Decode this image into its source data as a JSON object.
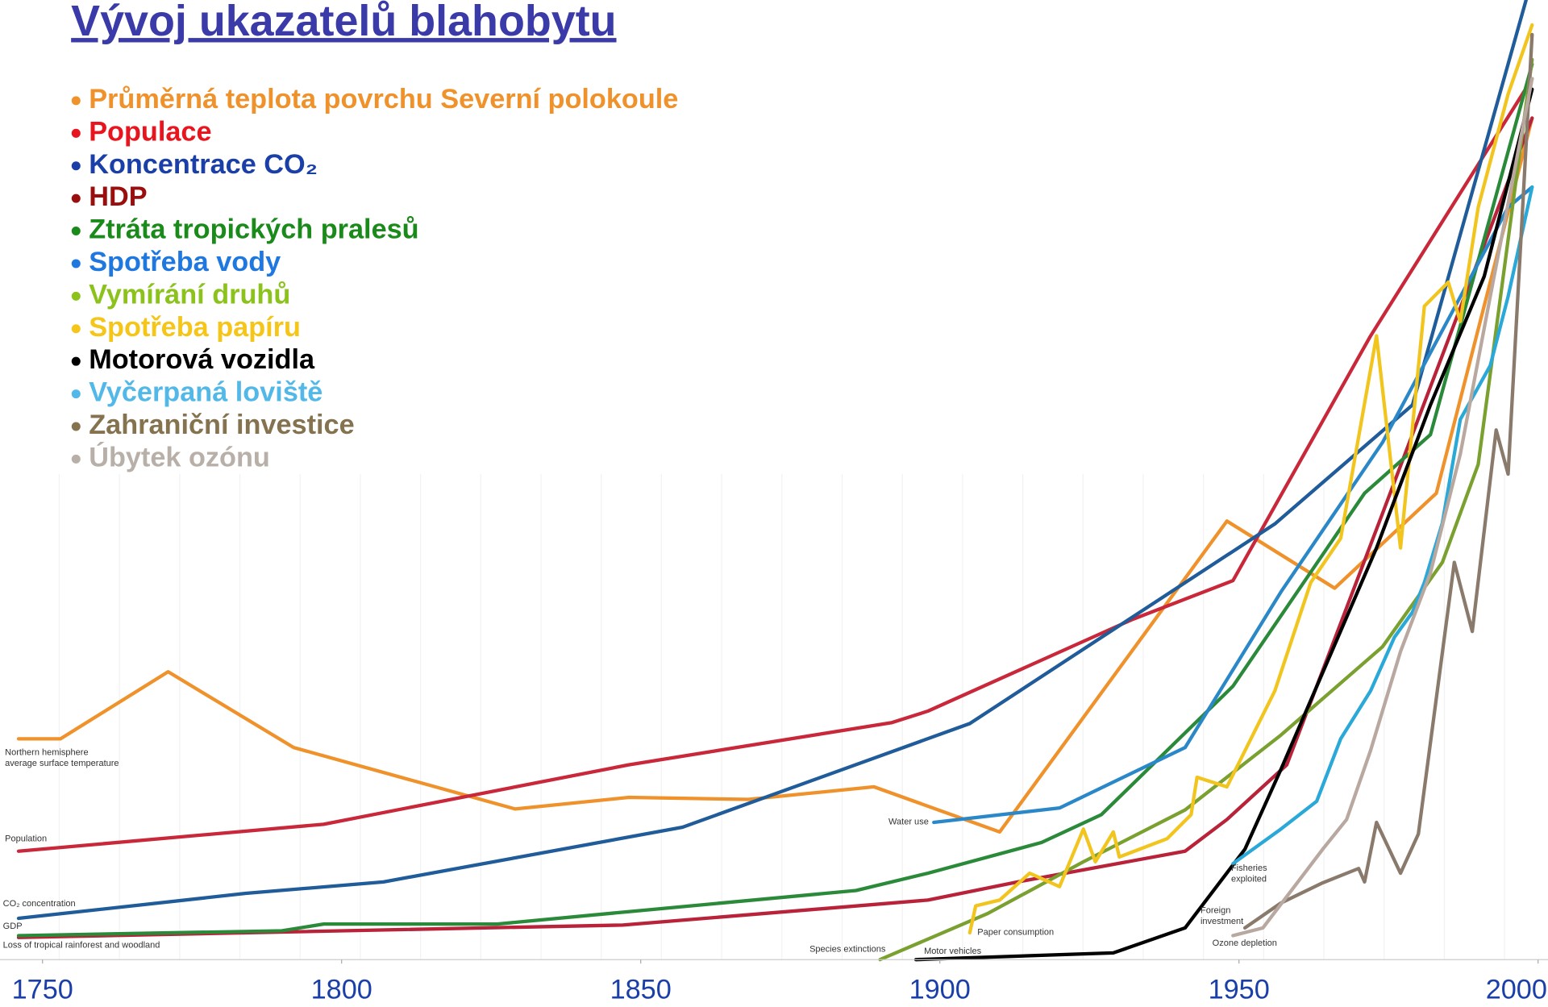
{
  "chart_data": {
    "type": "line",
    "title": "Vývoj ukazatelů blahobytu",
    "xlim": [
      1746,
      2001
    ],
    "xticks": [
      1750,
      1800,
      1850,
      1900,
      1950,
      2000
    ],
    "ylim": [
      0,
      100
    ],
    "series": [
      {
        "name": "Průměrná teplota povrchu Severní polokoule",
        "legend_color": "#f0922b",
        "color": "#f0922b",
        "label": [
          "Northern hemisphere",
          "average surface temperature"
        ],
        "x": [
          1746,
          1753,
          1771,
          1792,
          1829,
          1848,
          1868,
          1889,
          1910,
          1948,
          1966,
          1983,
          1999
        ],
        "values": [
          23.0,
          23.0,
          30.0,
          22.1,
          15.7,
          16.9,
          16.7,
          18.0,
          13.3,
          45.7,
          38.7,
          48.6,
          87.7
        ]
      },
      {
        "name": "Populace",
        "legend_color": "#e8141e",
        "color": "#c8283a",
        "label": [
          "Population"
        ],
        "x": [
          1746,
          1797,
          1848,
          1892,
          1898,
          1932,
          1949,
          1972,
          1999
        ],
        "values": [
          11.3,
          14.1,
          20.3,
          24.7,
          25.9,
          35.4,
          39.5,
          65.0,
          91.8
        ]
      },
      {
        "name": "Koncentrace CO₂",
        "legend_color": "#1a3fa8",
        "color": "#1f5c99",
        "label": [
          "CO₂ concentration"
        ],
        "x": [
          1746,
          1784,
          1807,
          1857,
          1905,
          1956,
          1979,
          1998
        ],
        "values": [
          4.3,
          6.9,
          8.1,
          13.8,
          24.6,
          45.4,
          57.8,
          100
        ]
      },
      {
        "name": "HDP",
        "legend_color": "#9a0e0e",
        "color": "#b8233a",
        "label": [
          "GDP"
        ],
        "x": [
          1746,
          1847,
          1898,
          1913,
          1941,
          1948,
          1958,
          1974,
          1999
        ],
        "values": [
          2.3,
          3.6,
          6.2,
          8.1,
          11.3,
          14.6,
          20.3,
          46.5,
          87.7
        ]
      },
      {
        "name": "Ztráta tropických pralesů",
        "legend_color": "#1a8a1a",
        "color": "#2a8a3a",
        "label": [
          "Loss of tropical rainforest and woodland"
        ],
        "x": [
          1746,
          1790,
          1797,
          1826,
          1848,
          1886,
          1898,
          1917,
          1927,
          1949,
          1971,
          1982,
          1999
        ],
        "values": [
          2.5,
          3.0,
          3.7,
          3.7,
          5.0,
          7.2,
          9.0,
          12.2,
          15.1,
          28.5,
          48.6,
          54.7,
          93.3
        ]
      },
      {
        "name": "Spotřeba vody",
        "legend_color": "#1f78e0",
        "color": "#2a88c8",
        "label": [
          "Water use"
        ],
        "x": [
          1899,
          1920,
          1941,
          1957,
          1974,
          1995,
          1999
        ],
        "values": [
          14.3,
          15.8,
          22.1,
          38.3,
          53.9,
          78.4,
          80.5
        ]
      },
      {
        "name": "Vymírání druhů",
        "legend_color": "#8cc21c",
        "color": "#7aa030",
        "label": [
          "Species extinctions"
        ],
        "x": [
          1890,
          1908,
          1924,
          1941,
          1957,
          1974,
          1984,
          1990,
          1999
        ],
        "values": [
          0,
          4.8,
          10.2,
          15.6,
          23.4,
          32.6,
          41.4,
          51.6,
          93.8
        ]
      },
      {
        "name": "Spotřeba papíru",
        "legend_color": "#f5c518",
        "color": "#f2c51e",
        "label": [
          "Paper consumption"
        ],
        "x": [
          1905,
          1906,
          1910,
          1915,
          1920,
          1924,
          1926,
          1929,
          1930,
          1938,
          1942,
          1943,
          1948,
          1956,
          1962,
          1967,
          1973,
          1977,
          1981,
          1985,
          1987,
          1990,
          1995,
          1999
        ],
        "values": [
          2.8,
          5.6,
          6.2,
          9.0,
          7.6,
          13.6,
          10.2,
          13.3,
          10.7,
          12.6,
          15.1,
          19.0,
          18.0,
          28.0,
          39.3,
          43.9,
          65.0,
          42.9,
          68.1,
          70.6,
          66.5,
          78.4,
          90.2,
          97.4
        ]
      },
      {
        "name": "Motorová vozidla",
        "legend_color": "#000000",
        "color": "#000000",
        "label": [
          "Motor vehicles"
        ],
        "x": [
          1896,
          1929,
          1941,
          1951,
          1957,
          1973,
          1982,
          1991,
          1999
        ],
        "values": [
          0,
          0.7,
          3.3,
          11.5,
          19.8,
          42.9,
          57.8,
          71.2,
          90.7
        ]
      },
      {
        "name": "Vyčerpaná loviště",
        "legend_color": "#52b8e8",
        "color": "#2aa8d8",
        "label": [
          "Fisheries",
          "exploited"
        ],
        "x": [
          1949,
          1957,
          1963,
          1967,
          1972,
          1976,
          1979,
          1981,
          1984,
          1987,
          1992,
          1995,
          1999
        ],
        "values": [
          10.0,
          13.6,
          16.5,
          23.0,
          28.0,
          33.6,
          36.2,
          39.3,
          45.5,
          56.3,
          61.9,
          69.1,
          80.5
        ]
      },
      {
        "name": "Zahraniční investice",
        "legend_color": "#857350",
        "color": "#8a7a6c",
        "label": [
          "Foreign",
          "investment"
        ],
        "x": [
          1951,
          1957,
          1964,
          1970,
          1971,
          1973,
          1977,
          1980,
          1986,
          1989,
          1993,
          1995,
          1999
        ],
        "values": [
          3.3,
          5.9,
          8.0,
          9.5,
          8.1,
          14.3,
          9.0,
          13.1,
          41.4,
          34.2,
          55.2,
          50.6,
          96.4
        ]
      },
      {
        "name": "Úbytek ozónu",
        "legend_color": "#b8b0a8",
        "color": "#b8a8a0",
        "label": [
          "Ozone depletion"
        ],
        "x": [
          1949,
          1954,
          1959,
          1964,
          1968,
          1972,
          1977,
          1982,
          1987,
          1992,
          1999
        ],
        "values": [
          2.5,
          3.3,
          7.4,
          11.5,
          14.6,
          21.8,
          32.1,
          40.3,
          52.7,
          69.1,
          91.8
        ]
      }
    ]
  }
}
